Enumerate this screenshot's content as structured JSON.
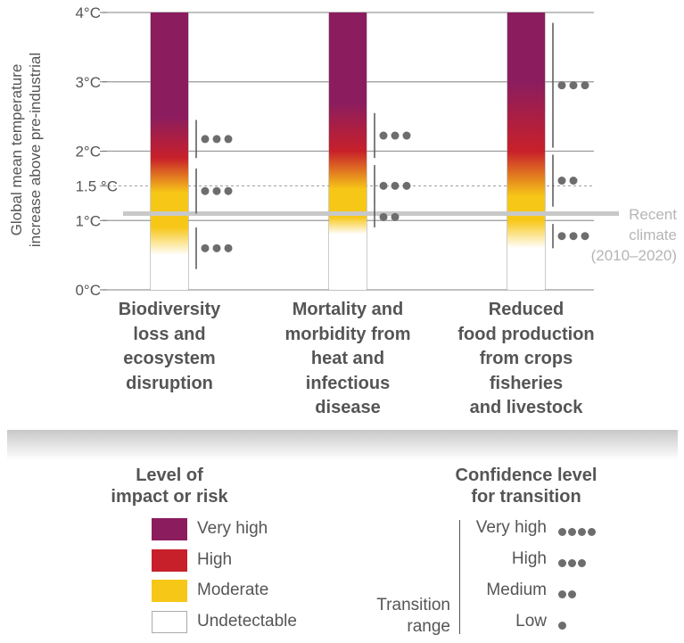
{
  "chart_data": {
    "type": "bar",
    "ylabel": "Global mean temperature increase above pre-industrial",
    "ylim": [
      0,
      4
    ],
    "y_ticks": [
      {
        "value": 0,
        "label": "0°C"
      },
      {
        "value": 1,
        "label": "1°C"
      },
      {
        "value": 1.5,
        "label": "1.5 °C"
      },
      {
        "value": 2,
        "label": "2°C"
      },
      {
        "value": 3,
        "label": "3°C"
      },
      {
        "value": 4,
        "label": "4°C"
      }
    ],
    "recent_climate": {
      "value": 1.1,
      "label_lines": [
        "Recent",
        "climate",
        "(2010–2020)"
      ]
    },
    "categories": [
      {
        "label_lines": [
          "Biodiversity",
          "loss and",
          "ecosystem",
          "disruption"
        ],
        "gradient": [
          {
            "value": 0.5,
            "level": "Undetectable"
          },
          {
            "value": 0.9,
            "level": "Moderate"
          },
          {
            "value": 1.4,
            "level": "Moderate"
          },
          {
            "value": 1.9,
            "level": "High"
          },
          {
            "value": 2.5,
            "level": "Very high"
          }
        ],
        "transitions": [
          {
            "from": 0.3,
            "to": 0.9,
            "dots": 3
          },
          {
            "from": 1.1,
            "to": 1.75,
            "dots": 3
          },
          {
            "from": 1.9,
            "to": 2.45,
            "dots": 3
          }
        ]
      },
      {
        "label_lines": [
          "Mortality and",
          "morbidity from",
          "heat and",
          "infectious",
          "disease"
        ],
        "gradient": [
          {
            "value": 0.8,
            "level": "Undetectable"
          },
          {
            "value": 1.05,
            "level": "Moderate"
          },
          {
            "value": 1.45,
            "level": "Moderate"
          },
          {
            "value": 2.0,
            "level": "High"
          },
          {
            "value": 2.7,
            "level": "Very high"
          }
        ],
        "transitions": [
          {
            "from": 0.9,
            "to": 1.2,
            "dots": 2
          },
          {
            "from": 1.2,
            "to": 1.8,
            "dots": 3
          },
          {
            "from": 1.9,
            "to": 2.55,
            "dots": 3
          }
        ]
      },
      {
        "label_lines": [
          "Reduced",
          "food production",
          "from crops",
          "fisheries",
          "and livestock"
        ],
        "gradient": [
          {
            "value": 0.6,
            "level": "Undetectable"
          },
          {
            "value": 1.0,
            "level": "Moderate"
          },
          {
            "value": 1.35,
            "level": "Moderate"
          },
          {
            "value": 2.0,
            "level": "High"
          },
          {
            "value": 3.0,
            "level": "Very high"
          }
        ],
        "transitions": [
          {
            "from": 0.6,
            "to": 0.95,
            "dots": 3
          },
          {
            "from": 1.2,
            "to": 1.95,
            "dots": 2
          },
          {
            "from": 2.05,
            "to": 3.85,
            "dots": 3
          }
        ]
      }
    ]
  },
  "colors": {
    "very_high": "#8b1d5f",
    "high": "#c8202a",
    "moderate": "#f7c718",
    "undetectable": "#ffffff",
    "axis": "#6b6b6b",
    "recent": "#c8c8c8",
    "dot": "#6d6d6d"
  },
  "legend": {
    "risk_title_lines": [
      "Level of",
      "impact or risk"
    ],
    "risk_levels": [
      {
        "label": "Very high",
        "color": "#8b1d5f"
      },
      {
        "label": "High",
        "color": "#c8202a"
      },
      {
        "label": "Moderate",
        "color": "#f7c718"
      },
      {
        "label": "Undetectable",
        "color": "#ffffff"
      }
    ],
    "confidence_title_lines": [
      "Confidence level",
      "for transition"
    ],
    "confidence_levels": [
      {
        "label": "Very high",
        "dots": 4
      },
      {
        "label": "High",
        "dots": 3
      },
      {
        "label": "Medium",
        "dots": 2
      },
      {
        "label": "Low",
        "dots": 1
      }
    ],
    "transition_range_lines": [
      "Transition",
      "range"
    ]
  }
}
